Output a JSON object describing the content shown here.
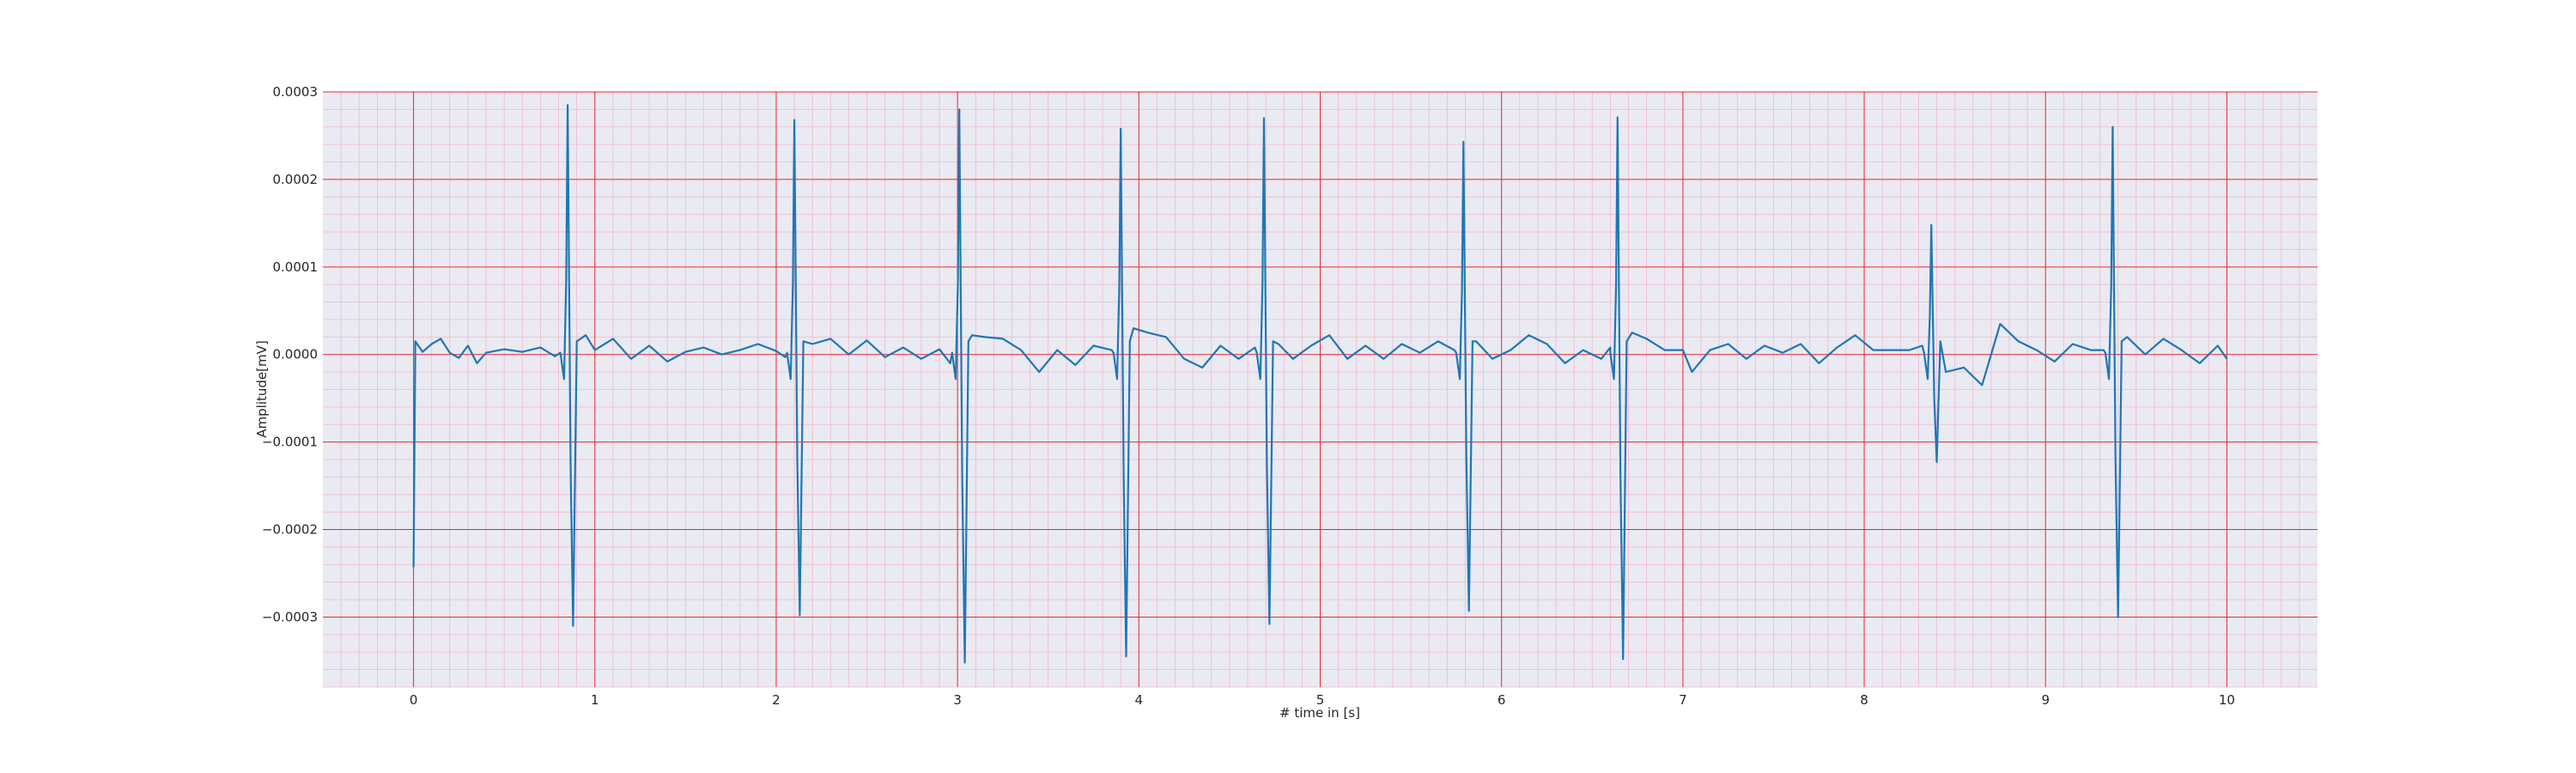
{
  "chart_data": {
    "type": "line",
    "title": "",
    "xlabel": "# time in [s]",
    "ylabel": "Amplitude[mV]",
    "xlim": [
      -0.5,
      10.5
    ],
    "ylim": [
      -0.00038,
      0.0003
    ],
    "x_ticks": [
      0,
      1,
      2,
      3,
      4,
      5,
      6,
      7,
      8,
      9,
      10
    ],
    "x_tick_labels": [
      "0",
      "1",
      "2",
      "3",
      "4",
      "5",
      "6",
      "7",
      "8",
      "9",
      "10"
    ],
    "y_ticks": [
      0.0003,
      0.0002,
      0.0001,
      0.0,
      -0.0001,
      -0.0002,
      -0.0003
    ],
    "y_tick_labels": [
      "0.0003",
      "0.0002",
      "0.0001",
      "0.0000",
      "−0.0001",
      "−0.0002",
      "−0.0003"
    ],
    "grid": {
      "major": true,
      "minor": true
    },
    "legend": "none",
    "colors": {
      "background": "#eaeaf2",
      "major_grid": "#e8272c",
      "minor_grid": "#f4b8cc",
      "line": "#1f77b4",
      "text": "#262626"
    },
    "series": [
      {
        "beats": [
          {
            "t": 0.85,
            "r": 0.000285,
            "s": -0.00031
          },
          {
            "t": 2.1,
            "r": 0.000268,
            "s": -0.000298
          },
          {
            "t": 3.01,
            "r": 0.00028,
            "s": -0.000352
          },
          {
            "t": 3.9,
            "r": 0.000258,
            "s": -0.000345
          },
          {
            "t": 4.69,
            "r": 0.00027,
            "s": -0.000308
          },
          {
            "t": 5.79,
            "r": 0.000243,
            "s": -0.000293
          },
          {
            "t": 6.64,
            "r": 0.000271,
            "s": -0.000348
          },
          {
            "t": 8.37,
            "r": 0.000148,
            "s": -0.000123
          },
          {
            "t": 9.37,
            "r": 0.00026,
            "s": -0.0003
          }
        ],
        "baseline": [
          [
            0.0,
            -0.000243
          ],
          [
            0.01,
            1.5e-05
          ],
          [
            0.05,
            3e-06
          ],
          [
            0.1,
            1.2e-05
          ],
          [
            0.15,
            1.8e-05
          ],
          [
            0.2,
            2e-06
          ],
          [
            0.25,
            -4e-06
          ],
          [
            0.3,
            1e-05
          ],
          [
            0.35,
            -1e-05
          ],
          [
            0.4,
            2e-06
          ],
          [
            0.5,
            6e-06
          ],
          [
            0.6,
            3e-06
          ],
          [
            0.7,
            8e-06
          ],
          [
            0.78,
            -2e-06
          ],
          [
            0.95,
            2.2e-05
          ],
          [
            1.0,
            5e-06
          ],
          [
            1.1,
            1.8e-05
          ],
          [
            1.2,
            -5e-06
          ],
          [
            1.3,
            1e-05
          ],
          [
            1.4,
            -8e-06
          ],
          [
            1.5,
            3e-06
          ],
          [
            1.6,
            8e-06
          ],
          [
            1.7,
            0.0
          ],
          [
            1.8,
            5e-06
          ],
          [
            1.9,
            1.2e-05
          ],
          [
            2.0,
            4e-06
          ],
          [
            2.05,
            -3e-06
          ],
          [
            2.2,
            1.2e-05
          ],
          [
            2.3,
            1.8e-05
          ],
          [
            2.4,
            0.0
          ],
          [
            2.5,
            1.6e-05
          ],
          [
            2.6,
            -3e-06
          ],
          [
            2.7,
            8e-06
          ],
          [
            2.8,
            -5e-06
          ],
          [
            2.9,
            6e-06
          ],
          [
            2.96,
            -1e-05
          ],
          [
            3.08,
            2.2e-05
          ],
          [
            3.15,
            2e-05
          ],
          [
            3.25,
            1.8e-05
          ],
          [
            3.35,
            5e-06
          ],
          [
            3.45,
            -2e-05
          ],
          [
            3.55,
            5e-06
          ],
          [
            3.65,
            -1.2e-05
          ],
          [
            3.75,
            1e-05
          ],
          [
            3.85,
            5e-06
          ],
          [
            3.97,
            3e-05
          ],
          [
            4.05,
            2.5e-05
          ],
          [
            4.15,
            2e-05
          ],
          [
            4.25,
            -5e-06
          ],
          [
            4.35,
            -1.5e-05
          ],
          [
            4.45,
            1e-05
          ],
          [
            4.55,
            -5e-06
          ],
          [
            4.64,
            8e-06
          ],
          [
            4.77,
            1.2e-05
          ],
          [
            4.85,
            -5e-06
          ],
          [
            4.95,
            1e-05
          ],
          [
            5.05,
            2.2e-05
          ],
          [
            5.15,
            -5e-06
          ],
          [
            5.25,
            1e-05
          ],
          [
            5.35,
            -5e-06
          ],
          [
            5.45,
            1.2e-05
          ],
          [
            5.55,
            2e-06
          ],
          [
            5.65,
            1.5e-05
          ],
          [
            5.74,
            5e-06
          ],
          [
            5.86,
            1.5e-05
          ],
          [
            5.95,
            -5e-06
          ],
          [
            6.05,
            5e-06
          ],
          [
            6.15,
            2.2e-05
          ],
          [
            6.25,
            1.2e-05
          ],
          [
            6.35,
            -1e-05
          ],
          [
            6.45,
            5e-06
          ],
          [
            6.55,
            -5e-06
          ],
          [
            6.6,
            8e-06
          ],
          [
            6.72,
            2.5e-05
          ],
          [
            6.8,
            1.8e-05
          ],
          [
            6.9,
            5e-06
          ],
          [
            7.0,
            5e-06
          ],
          [
            7.05,
            -2e-05
          ],
          [
            7.15,
            5e-06
          ],
          [
            7.25,
            1.2e-05
          ],
          [
            7.35,
            -5e-06
          ],
          [
            7.45,
            1e-05
          ],
          [
            7.55,
            2e-06
          ],
          [
            7.65,
            1.2e-05
          ],
          [
            7.75,
            -1e-05
          ],
          [
            7.85,
            8e-06
          ],
          [
            7.95,
            2.2e-05
          ],
          [
            8.05,
            5e-06
          ],
          [
            8.15,
            5e-06
          ],
          [
            8.25,
            5e-06
          ],
          [
            8.32,
            1e-05
          ],
          [
            8.45,
            -2e-05
          ],
          [
            8.55,
            -1.5e-05
          ],
          [
            8.65,
            -3.5e-05
          ],
          [
            8.75,
            3.5e-05
          ],
          [
            8.85,
            1.5e-05
          ],
          [
            8.95,
            5e-06
          ],
          [
            9.05,
            -8e-06
          ],
          [
            9.15,
            1.2e-05
          ],
          [
            9.25,
            5e-06
          ],
          [
            9.32,
            5e-06
          ],
          [
            9.45,
            2e-05
          ],
          [
            9.55,
            0.0
          ],
          [
            9.65,
            1.8e-05
          ],
          [
            9.75,
            5e-06
          ],
          [
            9.85,
            -1e-05
          ],
          [
            9.95,
            1e-05
          ],
          [
            10.0,
            -5e-06
          ]
        ]
      }
    ]
  }
}
